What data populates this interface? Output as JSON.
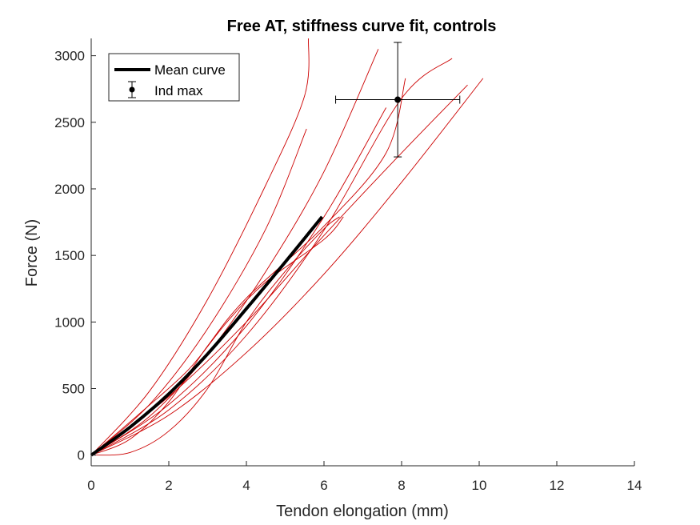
{
  "chart_data": {
    "type": "line",
    "title": "Free AT, stiffness curve fit, controls",
    "xlabel": "Tendon elongation (mm)",
    "ylabel": "Force (N)",
    "xlim": [
      0,
      14
    ],
    "ylim": [
      -80,
      3130
    ],
    "xticks": [
      0,
      2,
      4,
      6,
      8,
      10,
      12,
      14
    ],
    "yticks": [
      0,
      500,
      1000,
      1500,
      2000,
      2500,
      3000
    ],
    "grid": false,
    "legend_position": "top-left",
    "colors": {
      "individual": "#cc0000",
      "mean": "#000000",
      "errorbar": "#000000"
    },
    "legend": [
      {
        "label": "Mean curve",
        "marker": "thick-line"
      },
      {
        "label": "Ind max",
        "marker": "errorbar-dot"
      }
    ],
    "individual_curves": [
      {
        "points": [
          [
            0,
            0
          ],
          [
            1.5,
            480
          ],
          [
            3,
            1170
          ],
          [
            4.5,
            2030
          ],
          [
            5.5,
            2700
          ],
          [
            5.6,
            3130
          ]
        ]
      },
      {
        "points": [
          [
            0,
            0
          ],
          [
            1.5,
            380
          ],
          [
            3,
            950
          ],
          [
            4.5,
            1700
          ],
          [
            5.55,
            2450
          ]
        ]
      },
      {
        "points": [
          [
            0,
            0
          ],
          [
            1.5,
            290
          ],
          [
            3,
            760
          ],
          [
            4.5,
            1380
          ],
          [
            6,
            2130
          ],
          [
            7.4,
            3050
          ]
        ]
      },
      {
        "points": [
          [
            0,
            0
          ],
          [
            2,
            380
          ],
          [
            4,
            970
          ],
          [
            6,
            1790
          ],
          [
            7.6,
            2610
          ]
        ]
      },
      {
        "points": [
          [
            0,
            0
          ],
          [
            2,
            340
          ],
          [
            4,
            900
          ],
          [
            6,
            1690
          ],
          [
            8,
            2680
          ],
          [
            9.3,
            2980
          ]
        ]
      },
      {
        "points": [
          [
            0,
            0
          ],
          [
            1,
            120
          ],
          [
            2,
            400
          ],
          [
            3,
            820
          ],
          [
            4,
            1180
          ],
          [
            6,
            1720
          ],
          [
            7.6,
            2270
          ],
          [
            8.1,
            2830
          ]
        ]
      },
      {
        "points": [
          [
            0,
            0
          ],
          [
            2,
            440
          ],
          [
            4,
            1000
          ],
          [
            6,
            1650
          ],
          [
            8,
            2270
          ],
          [
            9.7,
            2780
          ]
        ]
      },
      {
        "points": [
          [
            0,
            0
          ],
          [
            2,
            300
          ],
          [
            4,
            770
          ],
          [
            6,
            1360
          ],
          [
            8,
            2050
          ],
          [
            10.1,
            2830
          ]
        ]
      },
      {
        "points": [
          [
            0,
            0
          ],
          [
            1,
            20
          ],
          [
            2,
            180
          ],
          [
            3,
            500
          ],
          [
            4,
            1000
          ],
          [
            5,
            1380
          ],
          [
            6,
            1700
          ],
          [
            6.4,
            1790
          ]
        ]
      },
      {
        "points": [
          [
            0,
            0
          ],
          [
            1.2,
            300
          ],
          [
            2.5,
            640
          ],
          [
            3.5,
            1000
          ],
          [
            4.5,
            1300
          ],
          [
            6,
            1620
          ],
          [
            6.5,
            1790
          ]
        ]
      }
    ],
    "mean_curve": {
      "points": [
        [
          0,
          0
        ],
        [
          1,
          210
        ],
        [
          2,
          460
        ],
        [
          3,
          760
        ],
        [
          4,
          1100
        ],
        [
          5,
          1450
        ],
        [
          5.95,
          1790
        ]
      ]
    },
    "ind_max": {
      "x": 7.9,
      "y": 2670,
      "x_err": [
        6.3,
        9.5
      ],
      "y_err": [
        2240,
        3100
      ]
    }
  }
}
